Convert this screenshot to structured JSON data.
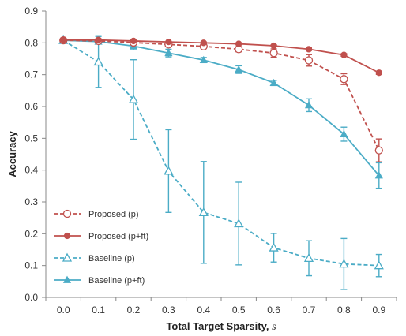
{
  "chart_data": {
    "type": "line",
    "title": "",
    "xlabel": "Total Target Sparsity, ",
    "xlabel_var": "s",
    "ylabel": "Accuracy",
    "x": [
      0.0,
      0.1,
      0.2,
      0.3,
      0.4,
      0.5,
      0.6,
      0.7,
      0.8,
      0.9
    ],
    "x_tick_labels": [
      "0.0",
      "0.1",
      "0.2",
      "0.3",
      "0.4",
      "0.5",
      "0.6",
      "0.7",
      "0.8",
      "0.9"
    ],
    "y_tick_labels": [
      "0.0",
      "0.1",
      "0.2",
      "0.3",
      "0.4",
      "0.5",
      "0.6",
      "0.7",
      "0.8",
      "0.9"
    ],
    "ylim": [
      0,
      0.9
    ],
    "grid": false,
    "legend_position": "bottom-left",
    "series": [
      {
        "name": "Proposed (p)",
        "color": "#c0504d",
        "dashed": true,
        "marker": "open-circle",
        "values": [
          0.808,
          0.806,
          0.801,
          0.795,
          0.789,
          0.78,
          0.768,
          0.745,
          0.686,
          0.462
        ],
        "error": [
          0.004,
          0.004,
          0.005,
          0.006,
          0.006,
          0.008,
          0.013,
          0.018,
          0.017,
          0.036
        ]
      },
      {
        "name": "Proposed (p+ft)",
        "color": "#c0504d",
        "dashed": false,
        "marker": "filled-circle",
        "values": [
          0.809,
          0.809,
          0.806,
          0.803,
          0.8,
          0.797,
          0.791,
          0.78,
          0.762,
          0.706
        ],
        "error": [
          0.002,
          0.002,
          0.002,
          0.002,
          0.003,
          0.003,
          0.003,
          0.004,
          0.004,
          0.005
        ]
      },
      {
        "name": "Baseline (p)",
        "color": "#4bacc6",
        "dashed": true,
        "marker": "open-triangle",
        "values": [
          0.808,
          0.74,
          0.622,
          0.397,
          0.267,
          0.232,
          0.156,
          0.123,
          0.105,
          0.1
        ],
        "error": [
          0.005,
          0.08,
          0.125,
          0.13,
          0.16,
          0.13,
          0.045,
          0.055,
          0.08,
          0.035
        ]
      },
      {
        "name": "Baseline (p+ft)",
        "color": "#4bacc6",
        "dashed": false,
        "marker": "filled-triangle",
        "values": [
          0.808,
          0.804,
          0.79,
          0.768,
          0.746,
          0.716,
          0.674,
          0.604,
          0.513,
          0.383
        ],
        "error": [
          0.004,
          0.004,
          0.012,
          0.012,
          0.008,
          0.012,
          0.008,
          0.02,
          0.022,
          0.04
        ]
      }
    ]
  }
}
